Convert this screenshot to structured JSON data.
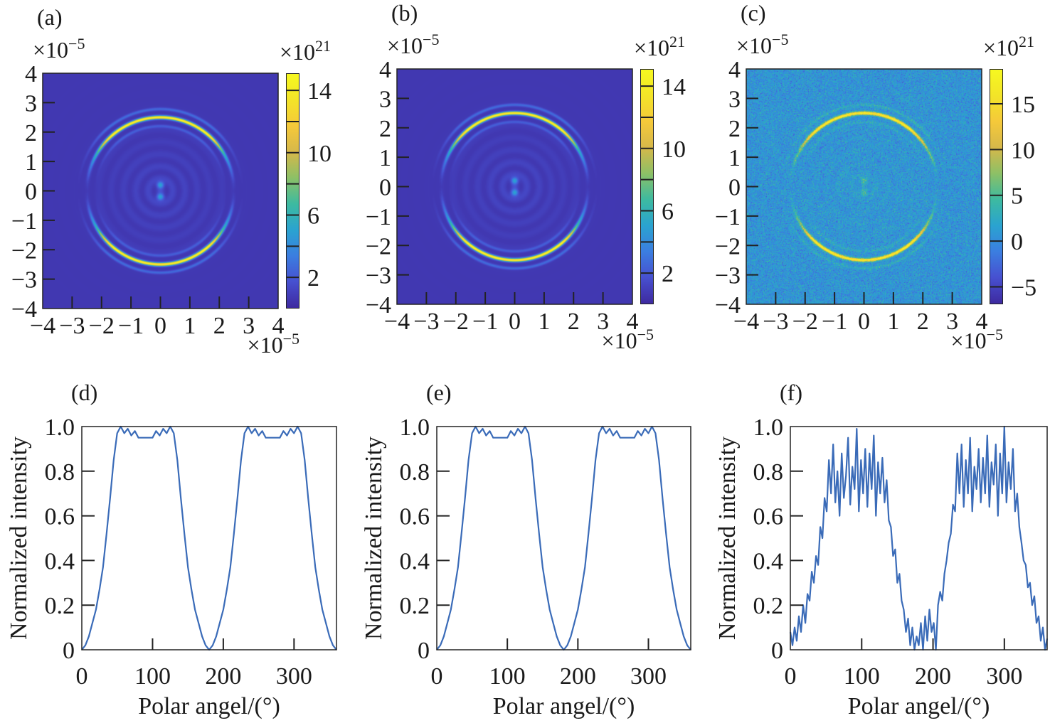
{
  "colormap": [
    "#3e2aa0",
    "#4750d0",
    "#3b7ee0",
    "#2aa3d0",
    "#3dbaa0",
    "#8cc066",
    "#d6b84a",
    "#f5c93a",
    "#f3e428",
    "#f6f820"
  ],
  "chart_data": [
    {
      "type": "heatmap",
      "panel_label": "(a)",
      "xlim": [
        -4,
        4
      ],
      "ylim": [
        -4,
        4
      ],
      "x_ticks": [
        "−4",
        "−3",
        "−2",
        "−1",
        "0",
        "1",
        "2",
        "3",
        "4"
      ],
      "y_ticks": [
        "−4",
        "−3",
        "−2",
        "−1",
        "0",
        "1",
        "2",
        "3",
        "4"
      ],
      "axis_multiplier": {
        "base": "×10",
        "exp": "−5"
      },
      "colorbar": {
        "range": [
          0,
          15.1
        ],
        "labels": [
          "14",
          "10",
          "6",
          "2"
        ],
        "label_values": [
          14,
          10,
          6,
          2
        ],
        "tick_values": [
          2,
          4,
          6,
          8,
          10,
          12,
          14
        ],
        "multiplier": {
          "base": "×10",
          "exp": "21"
        }
      },
      "ring_radius": 2.5,
      "peak": 15,
      "noise": false
    },
    {
      "type": "heatmap",
      "panel_label": "(b)",
      "xlim": [
        -4,
        4
      ],
      "ylim": [
        -4,
        4
      ],
      "x_ticks": [
        "−4",
        "−3",
        "−2",
        "−1",
        "0",
        "1",
        "2",
        "3",
        "4"
      ],
      "y_ticks": [
        "−4",
        "−3",
        "−2",
        "−1",
        "0",
        "1",
        "2",
        "3",
        "4"
      ],
      "axis_multiplier": {
        "base": "×10",
        "exp": "−5"
      },
      "colorbar": {
        "range": [
          0,
          15.1
        ],
        "labels": [
          "14",
          "10",
          "6",
          "2"
        ],
        "label_values": [
          14,
          10,
          6,
          2
        ],
        "tick_values": [
          2,
          4,
          6,
          8,
          10,
          12,
          14
        ],
        "multiplier": {
          "base": "×10",
          "exp": "21"
        }
      },
      "ring_radius": 2.5,
      "peak": 15,
      "noise": false
    },
    {
      "type": "heatmap",
      "panel_label": "(c)",
      "xlim": [
        -4,
        4
      ],
      "ylim": [
        -4,
        4
      ],
      "x_ticks": [
        "−4",
        "−3",
        "−2",
        "−1",
        "0",
        "1",
        "2",
        "3",
        "4"
      ],
      "y_ticks": [
        "−4",
        "−3",
        "−2",
        "−1",
        "0",
        "1",
        "2",
        "3",
        "4"
      ],
      "axis_multiplier": {
        "base": "×10",
        "exp": "−5"
      },
      "colorbar": {
        "range": [
          -6.9,
          18.8
        ],
        "labels": [
          "15",
          "10",
          "5",
          "0",
          "−5"
        ],
        "label_values": [
          15,
          10,
          5,
          0,
          -5
        ],
        "tick_values": [
          -5,
          0,
          5,
          10,
          15
        ],
        "multiplier": {
          "base": "×10",
          "exp": "21"
        }
      },
      "ring_radius": 2.5,
      "peak": 18,
      "noise": true
    },
    {
      "type": "line",
      "panel_label": "(d)",
      "xlabel": "Polar angel/(°)",
      "ylabel": "Normalized intensity",
      "xlim": [
        0,
        360
      ],
      "ylim": [
        0,
        1
      ],
      "x_ticks": [
        "0",
        "100",
        "200",
        "300"
      ],
      "x_tick_values": [
        0,
        100,
        200,
        300
      ],
      "y_ticks": [
        "0",
        "0.2",
        "0.4",
        "0.6",
        "0.8",
        "1.0"
      ],
      "y_tick_values": [
        0,
        0.2,
        0.4,
        0.6,
        0.8,
        1.0
      ],
      "color": "#3a6bb8",
      "x": [
        0,
        5,
        10,
        15,
        20,
        25,
        30,
        35,
        40,
        45,
        50,
        55,
        60,
        65,
        70,
        75,
        80,
        85,
        90,
        95,
        100,
        105,
        110,
        115,
        120,
        125,
        130,
        135,
        140,
        145,
        150,
        155,
        160,
        165,
        170,
        175,
        180,
        185,
        190,
        195,
        200,
        205,
        210,
        215,
        220,
        225,
        230,
        235,
        240,
        245,
        250,
        255,
        260,
        265,
        270,
        275,
        280,
        285,
        290,
        295,
        300,
        305,
        310,
        315,
        320,
        325,
        330,
        335,
        340,
        345,
        350,
        355,
        360
      ],
      "y": [
        0,
        0.02,
        0.06,
        0.12,
        0.18,
        0.27,
        0.37,
        0.52,
        0.68,
        0.85,
        0.97,
        1.0,
        0.97,
        0.99,
        0.96,
        0.98,
        0.95,
        0.95,
        0.95,
        0.95,
        0.95,
        0.98,
        0.96,
        0.99,
        0.97,
        1.0,
        0.97,
        0.85,
        0.68,
        0.52,
        0.37,
        0.27,
        0.18,
        0.12,
        0.06,
        0.02,
        0,
        0.02,
        0.06,
        0.12,
        0.18,
        0.27,
        0.37,
        0.52,
        0.68,
        0.85,
        0.97,
        1.0,
        0.97,
        0.99,
        0.96,
        0.98,
        0.95,
        0.95,
        0.95,
        0.95,
        0.95,
        0.98,
        0.96,
        0.99,
        0.97,
        1.0,
        0.97,
        0.85,
        0.68,
        0.52,
        0.37,
        0.27,
        0.18,
        0.12,
        0.06,
        0.02,
        0
      ]
    },
    {
      "type": "line",
      "panel_label": "(e)",
      "xlabel": "Polar angel/(°)",
      "ylabel": "Normalized intensity",
      "xlim": [
        0,
        360
      ],
      "ylim": [
        0,
        1
      ],
      "x_ticks": [
        "0",
        "100",
        "200",
        "300"
      ],
      "x_tick_values": [
        0,
        100,
        200,
        300
      ],
      "y_ticks": [
        "0",
        "0.2",
        "0.4",
        "0.6",
        "0.8",
        "1.0"
      ],
      "y_tick_values": [
        0,
        0.2,
        0.4,
        0.6,
        0.8,
        1.0
      ],
      "color": "#3a6bb8",
      "x": [
        0,
        5,
        10,
        15,
        20,
        25,
        30,
        35,
        40,
        45,
        50,
        55,
        60,
        65,
        70,
        75,
        80,
        85,
        90,
        95,
        100,
        105,
        110,
        115,
        120,
        125,
        130,
        135,
        140,
        145,
        150,
        155,
        160,
        165,
        170,
        175,
        180,
        185,
        190,
        195,
        200,
        205,
        210,
        215,
        220,
        225,
        230,
        235,
        240,
        245,
        250,
        255,
        260,
        265,
        270,
        275,
        280,
        285,
        290,
        295,
        300,
        305,
        310,
        315,
        320,
        325,
        330,
        335,
        340,
        345,
        350,
        355,
        360
      ],
      "y": [
        0,
        0.02,
        0.06,
        0.12,
        0.18,
        0.27,
        0.37,
        0.52,
        0.68,
        0.85,
        0.97,
        1.0,
        0.97,
        0.99,
        0.96,
        0.98,
        0.95,
        0.95,
        0.95,
        0.95,
        0.95,
        0.98,
        0.96,
        0.99,
        0.97,
        1.0,
        0.97,
        0.85,
        0.68,
        0.52,
        0.37,
        0.27,
        0.18,
        0.12,
        0.06,
        0.02,
        0,
        0.02,
        0.06,
        0.12,
        0.18,
        0.27,
        0.37,
        0.52,
        0.68,
        0.85,
        0.97,
        1.0,
        0.97,
        0.99,
        0.96,
        0.98,
        0.95,
        0.95,
        0.95,
        0.95,
        0.95,
        0.98,
        0.96,
        0.99,
        0.97,
        1.0,
        0.97,
        0.85,
        0.68,
        0.52,
        0.37,
        0.27,
        0.18,
        0.12,
        0.06,
        0.02,
        0
      ]
    },
    {
      "type": "line",
      "panel_label": "(f)",
      "xlabel": "Polar angel/(°)",
      "ylabel": "Normalized intensity",
      "xlim": [
        0,
        360
      ],
      "ylim": [
        0,
        1
      ],
      "x_ticks": [
        "0",
        "100",
        "200",
        "300"
      ],
      "x_tick_values": [
        0,
        100,
        200,
        300
      ],
      "y_ticks": [
        "0",
        "0.2",
        "0.4",
        "0.6",
        "0.8",
        "1.0"
      ],
      "y_tick_values": [
        0,
        0.2,
        0.4,
        0.6,
        0.8,
        1.0
      ],
      "color": "#3a6bb8",
      "x": [
        0,
        3,
        6,
        9,
        12,
        15,
        18,
        21,
        24,
        27,
        30,
        33,
        36,
        39,
        42,
        45,
        48,
        51,
        54,
        57,
        60,
        63,
        66,
        69,
        72,
        75,
        78,
        81,
        84,
        87,
        90,
        93,
        96,
        99,
        102,
        105,
        108,
        111,
        114,
        117,
        120,
        123,
        126,
        129,
        132,
        135,
        138,
        141,
        144,
        147,
        150,
        153,
        156,
        159,
        162,
        165,
        168,
        171,
        174,
        177,
        180,
        183,
        186,
        189,
        192,
        195,
        198,
        201,
        204,
        207,
        210,
        213,
        216,
        219,
        222,
        225,
        228,
        231,
        234,
        237,
        240,
        243,
        246,
        249,
        252,
        255,
        258,
        261,
        264,
        267,
        270,
        273,
        276,
        279,
        282,
        285,
        288,
        291,
        294,
        297,
        300,
        303,
        306,
        309,
        312,
        315,
        318,
        321,
        324,
        327,
        330,
        333,
        336,
        339,
        342,
        345,
        348,
        351,
        354,
        357,
        360
      ],
      "y": [
        0.08,
        0.02,
        0.1,
        0.04,
        0.15,
        0.08,
        0.2,
        0.12,
        0.25,
        0.22,
        0.35,
        0.3,
        0.42,
        0.38,
        0.55,
        0.5,
        0.68,
        0.62,
        0.85,
        0.7,
        0.92,
        0.66,
        0.8,
        0.6,
        0.88,
        0.68,
        0.78,
        0.95,
        0.65,
        0.82,
        0.72,
        0.99,
        0.62,
        0.85,
        0.7,
        0.9,
        0.64,
        0.88,
        0.72,
        0.96,
        0.6,
        0.84,
        0.7,
        0.86,
        0.66,
        0.76,
        0.58,
        0.55,
        0.42,
        0.45,
        0.3,
        0.34,
        0.22,
        0.18,
        0.08,
        0.14,
        0.02,
        0.1,
        0.0,
        0.06,
        0.02,
        0.12,
        0.0,
        0.15,
        0.04,
        0.18,
        0.08,
        0.12,
        0.0,
        0.2,
        0.26,
        0.22,
        0.34,
        0.4,
        0.48,
        0.52,
        0.65,
        0.62,
        0.88,
        0.7,
        0.92,
        0.64,
        0.85,
        0.7,
        0.95,
        0.62,
        0.82,
        0.72,
        0.9,
        0.66,
        0.86,
        0.7,
        0.96,
        0.64,
        0.84,
        0.74,
        0.92,
        0.6,
        0.88,
        0.7,
        1.0,
        0.66,
        0.84,
        0.72,
        0.9,
        0.62,
        0.7,
        0.55,
        0.48,
        0.4,
        0.38,
        0.28,
        0.3,
        0.2,
        0.24,
        0.12,
        0.15,
        0.04,
        0.1,
        0.0,
        0.05
      ]
    }
  ]
}
